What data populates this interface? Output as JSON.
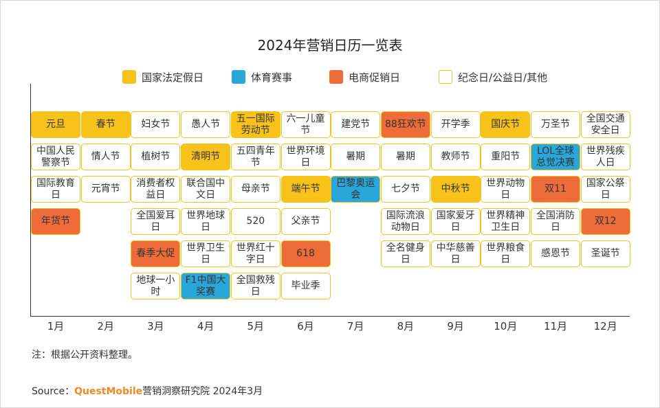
{
  "colors": {
    "legal_holiday": "#f7c21a",
    "sports": "#2aa7d9",
    "ecommerce": "#ee6b3a",
    "other": "#ffffff",
    "cell_border": "#f3c21b"
  },
  "title": "2024年营销日历一览表",
  "legend": [
    {
      "key": "legal_holiday",
      "label": "国家法定假日"
    },
    {
      "key": "sports",
      "label": "体育赛事"
    },
    {
      "key": "ecommerce",
      "label": "电商促销日"
    },
    {
      "key": "other",
      "label": "纪念日/公益日/其他"
    }
  ],
  "note": "注：根据公开资料整理。",
  "source": {
    "prefix": "Source：",
    "brand": "QuestMobile",
    "suffix": "营销洞察研究院 2024年3月"
  },
  "chart_data": {
    "type": "table",
    "title": "2024年营销日历一览表",
    "categories": [
      "1月",
      "2月",
      "3月",
      "4月",
      "5月",
      "6月",
      "7月",
      "8月",
      "9月",
      "10月",
      "11月",
      "12月"
    ],
    "months": [
      {
        "month": "1月",
        "events": [
          {
            "name": "元旦",
            "type": "legal_holiday",
            "row": 0
          },
          {
            "name": "中国人民警察节",
            "type": "other",
            "row": 1
          },
          {
            "name": "国际教育日",
            "type": "other",
            "row": 2
          },
          {
            "name": "年货节",
            "type": "ecommerce",
            "row": 3
          }
        ]
      },
      {
        "month": "2月",
        "events": [
          {
            "name": "春节",
            "type": "legal_holiday",
            "row": 0
          },
          {
            "name": "情人节",
            "type": "other",
            "row": 1
          },
          {
            "name": "元宵节",
            "type": "other",
            "row": 2
          }
        ]
      },
      {
        "month": "3月",
        "events": [
          {
            "name": "妇女节",
            "type": "other",
            "row": 0
          },
          {
            "name": "植树节",
            "type": "other",
            "row": 1
          },
          {
            "name": "消费者权益日",
            "type": "other",
            "row": 2
          },
          {
            "name": "全国爱耳日",
            "type": "other",
            "row": 3
          },
          {
            "name": "春季大促",
            "type": "ecommerce",
            "row": 4
          },
          {
            "name": "地球一小时",
            "type": "other",
            "row": 5
          }
        ]
      },
      {
        "month": "4月",
        "events": [
          {
            "name": "愚人节",
            "type": "other",
            "row": 0
          },
          {
            "name": "清明节",
            "type": "legal_holiday",
            "row": 1
          },
          {
            "name": "联合国中文日",
            "type": "other",
            "row": 2
          },
          {
            "name": "世界地球日",
            "type": "other",
            "row": 3
          },
          {
            "name": "世界卫生日",
            "type": "other",
            "row": 4
          },
          {
            "name": "F1中国大奖赛",
            "type": "sports",
            "row": 5
          }
        ]
      },
      {
        "month": "5月",
        "events": [
          {
            "name": "五一国际劳动节",
            "type": "legal_holiday",
            "row": 0
          },
          {
            "name": "五四青年节",
            "type": "other",
            "row": 1
          },
          {
            "name": "母亲节",
            "type": "other",
            "row": 2
          },
          {
            "name": "520",
            "type": "other",
            "row": 3
          },
          {
            "name": "世界红十字日",
            "type": "other",
            "row": 4
          },
          {
            "name": "全国救残日",
            "type": "other",
            "row": 5
          }
        ]
      },
      {
        "month": "6月",
        "events": [
          {
            "name": "六一儿童节",
            "type": "other",
            "row": 0
          },
          {
            "name": "世界环境日",
            "type": "other",
            "row": 1
          },
          {
            "name": "端午节",
            "type": "legal_holiday",
            "row": 2
          },
          {
            "name": "父亲节",
            "type": "other",
            "row": 3
          },
          {
            "name": "618",
            "type": "ecommerce",
            "row": 4
          },
          {
            "name": "毕业季",
            "type": "other",
            "row": 5
          }
        ]
      },
      {
        "month": "7月",
        "events": [
          {
            "name": "建党节",
            "type": "other",
            "row": 0
          },
          {
            "name": "暑期",
            "type": "other",
            "row": 1
          },
          {
            "name": "巴黎奥运会",
            "type": "sports",
            "row": 2
          }
        ]
      },
      {
        "month": "8月",
        "events": [
          {
            "name": "88狂欢节",
            "type": "ecommerce",
            "row": 0
          },
          {
            "name": "暑期",
            "type": "other",
            "row": 1
          },
          {
            "name": "七夕节",
            "type": "other",
            "row": 2
          },
          {
            "name": "国际流浪动物日",
            "type": "other",
            "row": 3
          },
          {
            "name": "全名健身日",
            "type": "other",
            "row": 4
          }
        ]
      },
      {
        "month": "9月",
        "events": [
          {
            "name": "开学季",
            "type": "other",
            "row": 0
          },
          {
            "name": "教师节",
            "type": "other",
            "row": 1
          },
          {
            "name": "中秋节",
            "type": "legal_holiday",
            "row": 2
          },
          {
            "name": "国家爱牙日",
            "type": "other",
            "row": 3
          },
          {
            "name": "中华慈善日",
            "type": "other",
            "row": 4
          }
        ]
      },
      {
        "month": "10月",
        "events": [
          {
            "name": "国庆节",
            "type": "legal_holiday",
            "row": 0
          },
          {
            "name": "重阳节",
            "type": "other",
            "row": 1
          },
          {
            "name": "世界动物日",
            "type": "other",
            "row": 2
          },
          {
            "name": "世界精神卫生日",
            "type": "other",
            "row": 3
          },
          {
            "name": "世界粮食日",
            "type": "other",
            "row": 4
          }
        ]
      },
      {
        "month": "11月",
        "events": [
          {
            "name": "万圣节",
            "type": "other",
            "row": 0
          },
          {
            "name": "LOL全球总觉决赛",
            "type": "sports",
            "row": 1
          },
          {
            "name": "双11",
            "type": "ecommerce",
            "row": 2
          },
          {
            "name": "全国消防日",
            "type": "other",
            "row": 3
          },
          {
            "name": "感恩节",
            "type": "other",
            "row": 4
          }
        ]
      },
      {
        "month": "12月",
        "events": [
          {
            "name": "全国交通安全日",
            "type": "other",
            "row": 0
          },
          {
            "name": "世界残疾人日",
            "type": "other",
            "row": 1
          },
          {
            "name": "国家公祭日",
            "type": "other",
            "row": 2
          },
          {
            "name": "双12",
            "type": "ecommerce",
            "row": 3
          },
          {
            "name": "圣诞节",
            "type": "other",
            "row": 4
          }
        ]
      }
    ]
  }
}
